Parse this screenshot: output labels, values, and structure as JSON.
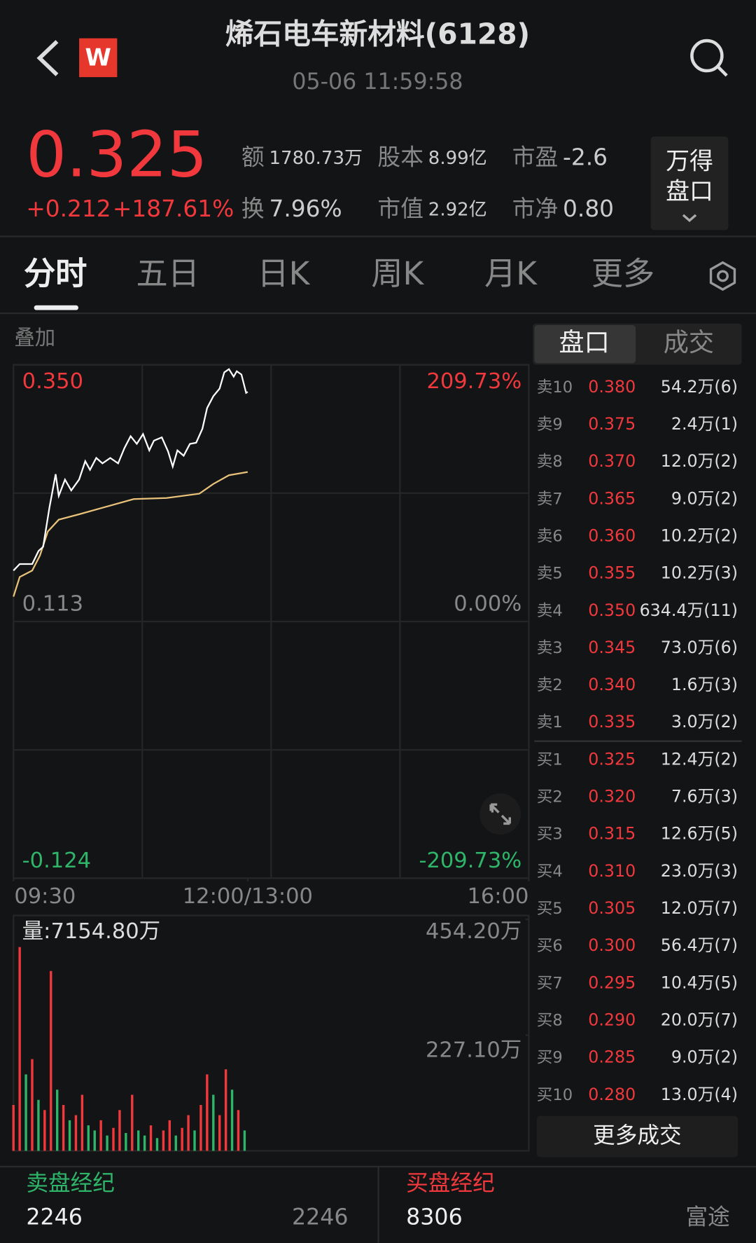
{
  "header": {
    "title": "烯石电车新材料(6128)",
    "time": "05-06 11:59:58",
    "logo": "W"
  },
  "quote": {
    "price": "0.325",
    "change": "+0.212",
    "change_pct": "+187.61%",
    "stats": [
      {
        "label": "额",
        "value": "1780.73万"
      },
      {
        "label": "股本",
        "value": "8.99亿"
      },
      {
        "label": "市盈",
        "value": "-2.6"
      },
      {
        "label": "换",
        "value": "7.96%"
      },
      {
        "label": "市值",
        "value": "2.92亿"
      },
      {
        "label": "市净",
        "value": "0.80"
      }
    ],
    "button_lines": [
      "万得",
      "盘口"
    ]
  },
  "tabs": [
    "分时",
    "五日",
    "日K",
    "周K",
    "月K",
    "更多"
  ],
  "overlay": "叠加",
  "intraday": {
    "type": "line",
    "xlim": [
      0,
      330
    ],
    "xticks": [
      {
        "value": 0,
        "label": "09:30"
      },
      {
        "value": 150,
        "label": "12:00/13:00"
      },
      {
        "value": 330,
        "label": "16:00"
      }
    ],
    "ylim": [
      -0.124,
      0.35
    ],
    "yticks": [
      {
        "value": 0.35,
        "label": "0.350"
      },
      {
        "value": 0.113,
        "label": "0.113"
      },
      {
        "value": -0.124,
        "label": "-0.124"
      }
    ],
    "y2lim": [
      -209.73,
      209.73
    ],
    "y2ticks": [
      {
        "value": 209.73,
        "label": "209.73%"
      },
      {
        "value": 0,
        "label": "0.00%"
      },
      {
        "value": -209.73,
        "label": "-209.73%"
      }
    ],
    "x": [
      0,
      4,
      12,
      16,
      19,
      23,
      27,
      29,
      33,
      37,
      42,
      46,
      49,
      53,
      57,
      62,
      67,
      71,
      75,
      79,
      83,
      87,
      90,
      95,
      99,
      102,
      105,
      109,
      113,
      117,
      121,
      124,
      128,
      132,
      135,
      138,
      141,
      143,
      146,
      149,
      150
    ],
    "price": [
      0.16,
      0.166,
      0.166,
      0.178,
      0.182,
      0.218,
      0.249,
      0.229,
      0.244,
      0.234,
      0.244,
      0.261,
      0.253,
      0.264,
      0.259,
      0.264,
      0.259,
      0.273,
      0.284,
      0.277,
      0.286,
      0.271,
      0.28,
      0.283,
      0.27,
      0.256,
      0.271,
      0.266,
      0.277,
      0.278,
      0.291,
      0.31,
      0.321,
      0.328,
      0.343,
      0.346,
      0.339,
      0.344,
      0.341,
      0.324,
      0.325
    ],
    "price_color": "#ffffff",
    "avg_x": [
      0,
      4,
      12,
      17,
      22,
      29,
      42,
      57,
      77,
      98,
      119,
      128,
      138,
      150
    ],
    "average": [
      0.136,
      0.154,
      0.16,
      0.174,
      0.196,
      0.207,
      0.212,
      0.218,
      0.226,
      0.227,
      0.231,
      0.24,
      0.248,
      0.251
    ],
    "avg_color": "#e8c27a",
    "up_color": "#f0383d",
    "down_color": "#2fb56a",
    "flat_color": "#888888"
  },
  "volume": {
    "type": "bar",
    "title": "量:7154.80万",
    "ylim": [
      0,
      454.2
    ],
    "yticks": [
      {
        "value": 454.2,
        "label": "454.20万"
      },
      {
        "value": 227.1,
        "label": "227.10万"
      }
    ],
    "x": [
      0,
      4,
      8,
      12,
      16,
      20,
      24,
      28,
      32,
      36,
      40,
      44,
      48,
      52,
      56,
      60,
      64,
      68,
      72,
      76,
      80,
      84,
      88,
      92,
      96,
      100,
      104,
      108,
      112,
      116,
      120,
      124,
      128,
      132,
      136,
      140,
      144,
      148
    ],
    "values": [
      90,
      400,
      150,
      180,
      100,
      80,
      353,
      120,
      90,
      60,
      70,
      110,
      50,
      40,
      60,
      30,
      45,
      80,
      35,
      110,
      40,
      30,
      50,
      25,
      40,
      60,
      30,
      45,
      70,
      40,
      90,
      150,
      110,
      70,
      160,
      120,
      80,
      40
    ],
    "up": [
      true,
      true,
      false,
      true,
      false,
      true,
      true,
      false,
      true,
      false,
      true,
      true,
      false,
      false,
      true,
      false,
      true,
      true,
      false,
      true,
      false,
      false,
      true,
      false,
      true,
      true,
      false,
      true,
      true,
      false,
      true,
      true,
      false,
      true,
      true,
      false,
      true,
      false
    ]
  },
  "book_tabs": [
    "盘口",
    "成交"
  ],
  "order_book": [
    {
      "side": "卖10",
      "price": "0.380",
      "volume": "54.2万(6)"
    },
    {
      "side": "卖9",
      "price": "0.375",
      "volume": "2.4万(1)"
    },
    {
      "side": "卖8",
      "price": "0.370",
      "volume": "12.0万(2)"
    },
    {
      "side": "卖7",
      "price": "0.365",
      "volume": "9.0万(2)"
    },
    {
      "side": "卖6",
      "price": "0.360",
      "volume": "10.2万(2)"
    },
    {
      "side": "卖5",
      "price": "0.355",
      "volume": "10.2万(3)"
    },
    {
      "side": "卖4",
      "price": "0.350",
      "volume": "634.4万(11)"
    },
    {
      "side": "卖3",
      "price": "0.345",
      "volume": "73.0万(6)"
    },
    {
      "side": "卖2",
      "price": "0.340",
      "volume": "1.6万(3)"
    },
    {
      "side": "卖1",
      "price": "0.335",
      "volume": "3.0万(2)"
    },
    {
      "side": "买1",
      "price": "0.325",
      "volume": "12.4万(2)"
    },
    {
      "side": "买2",
      "price": "0.320",
      "volume": "7.6万(3)"
    },
    {
      "side": "买3",
      "price": "0.315",
      "volume": "12.6万(5)"
    },
    {
      "side": "买4",
      "price": "0.310",
      "volume": "23.0万(3)"
    },
    {
      "side": "买5",
      "price": "0.305",
      "volume": "12.0万(7)"
    },
    {
      "side": "买6",
      "price": "0.300",
      "volume": "56.4万(7)"
    },
    {
      "side": "买7",
      "price": "0.295",
      "volume": "10.4万(5)"
    },
    {
      "side": "买8",
      "price": "0.290",
      "volume": "20.0万(7)"
    },
    {
      "side": "买9",
      "price": "0.285",
      "volume": "9.0万(2)"
    },
    {
      "side": "买10",
      "price": "0.280",
      "volume": "13.0万(4)"
    }
  ],
  "more_trades": "更多成交",
  "brokers": [
    {
      "title": "卖盘经纪",
      "count": "2246",
      "right": "2246"
    },
    {
      "title": "买盘经纪",
      "count": "8306",
      "right": "富途"
    }
  ]
}
